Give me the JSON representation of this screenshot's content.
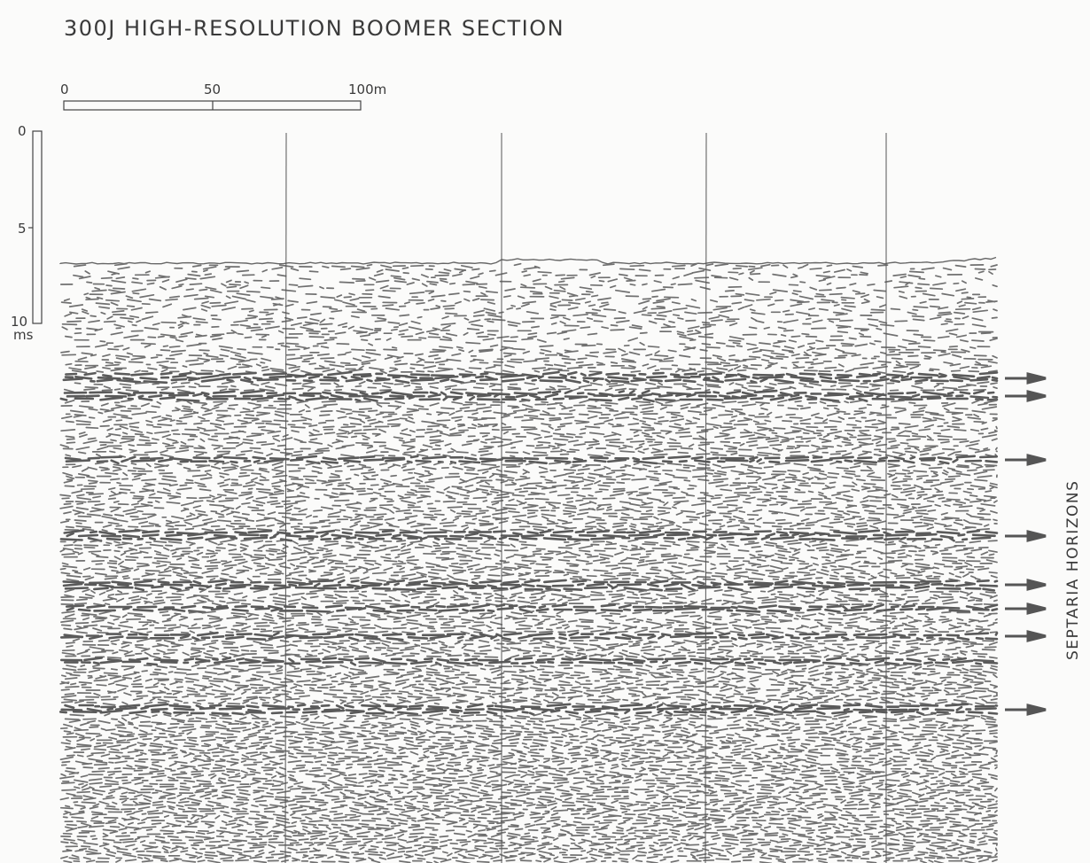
{
  "title": "300J HIGH-RESOLUTION BOOMER SECTION",
  "distance_scale": {
    "labels": [
      "0",
      "50",
      "100m"
    ]
  },
  "time_scale": {
    "labels": [
      "0",
      "5",
      "10"
    ],
    "unit": "ms"
  },
  "annotation": "SEPTARIA HORIZONS"
}
